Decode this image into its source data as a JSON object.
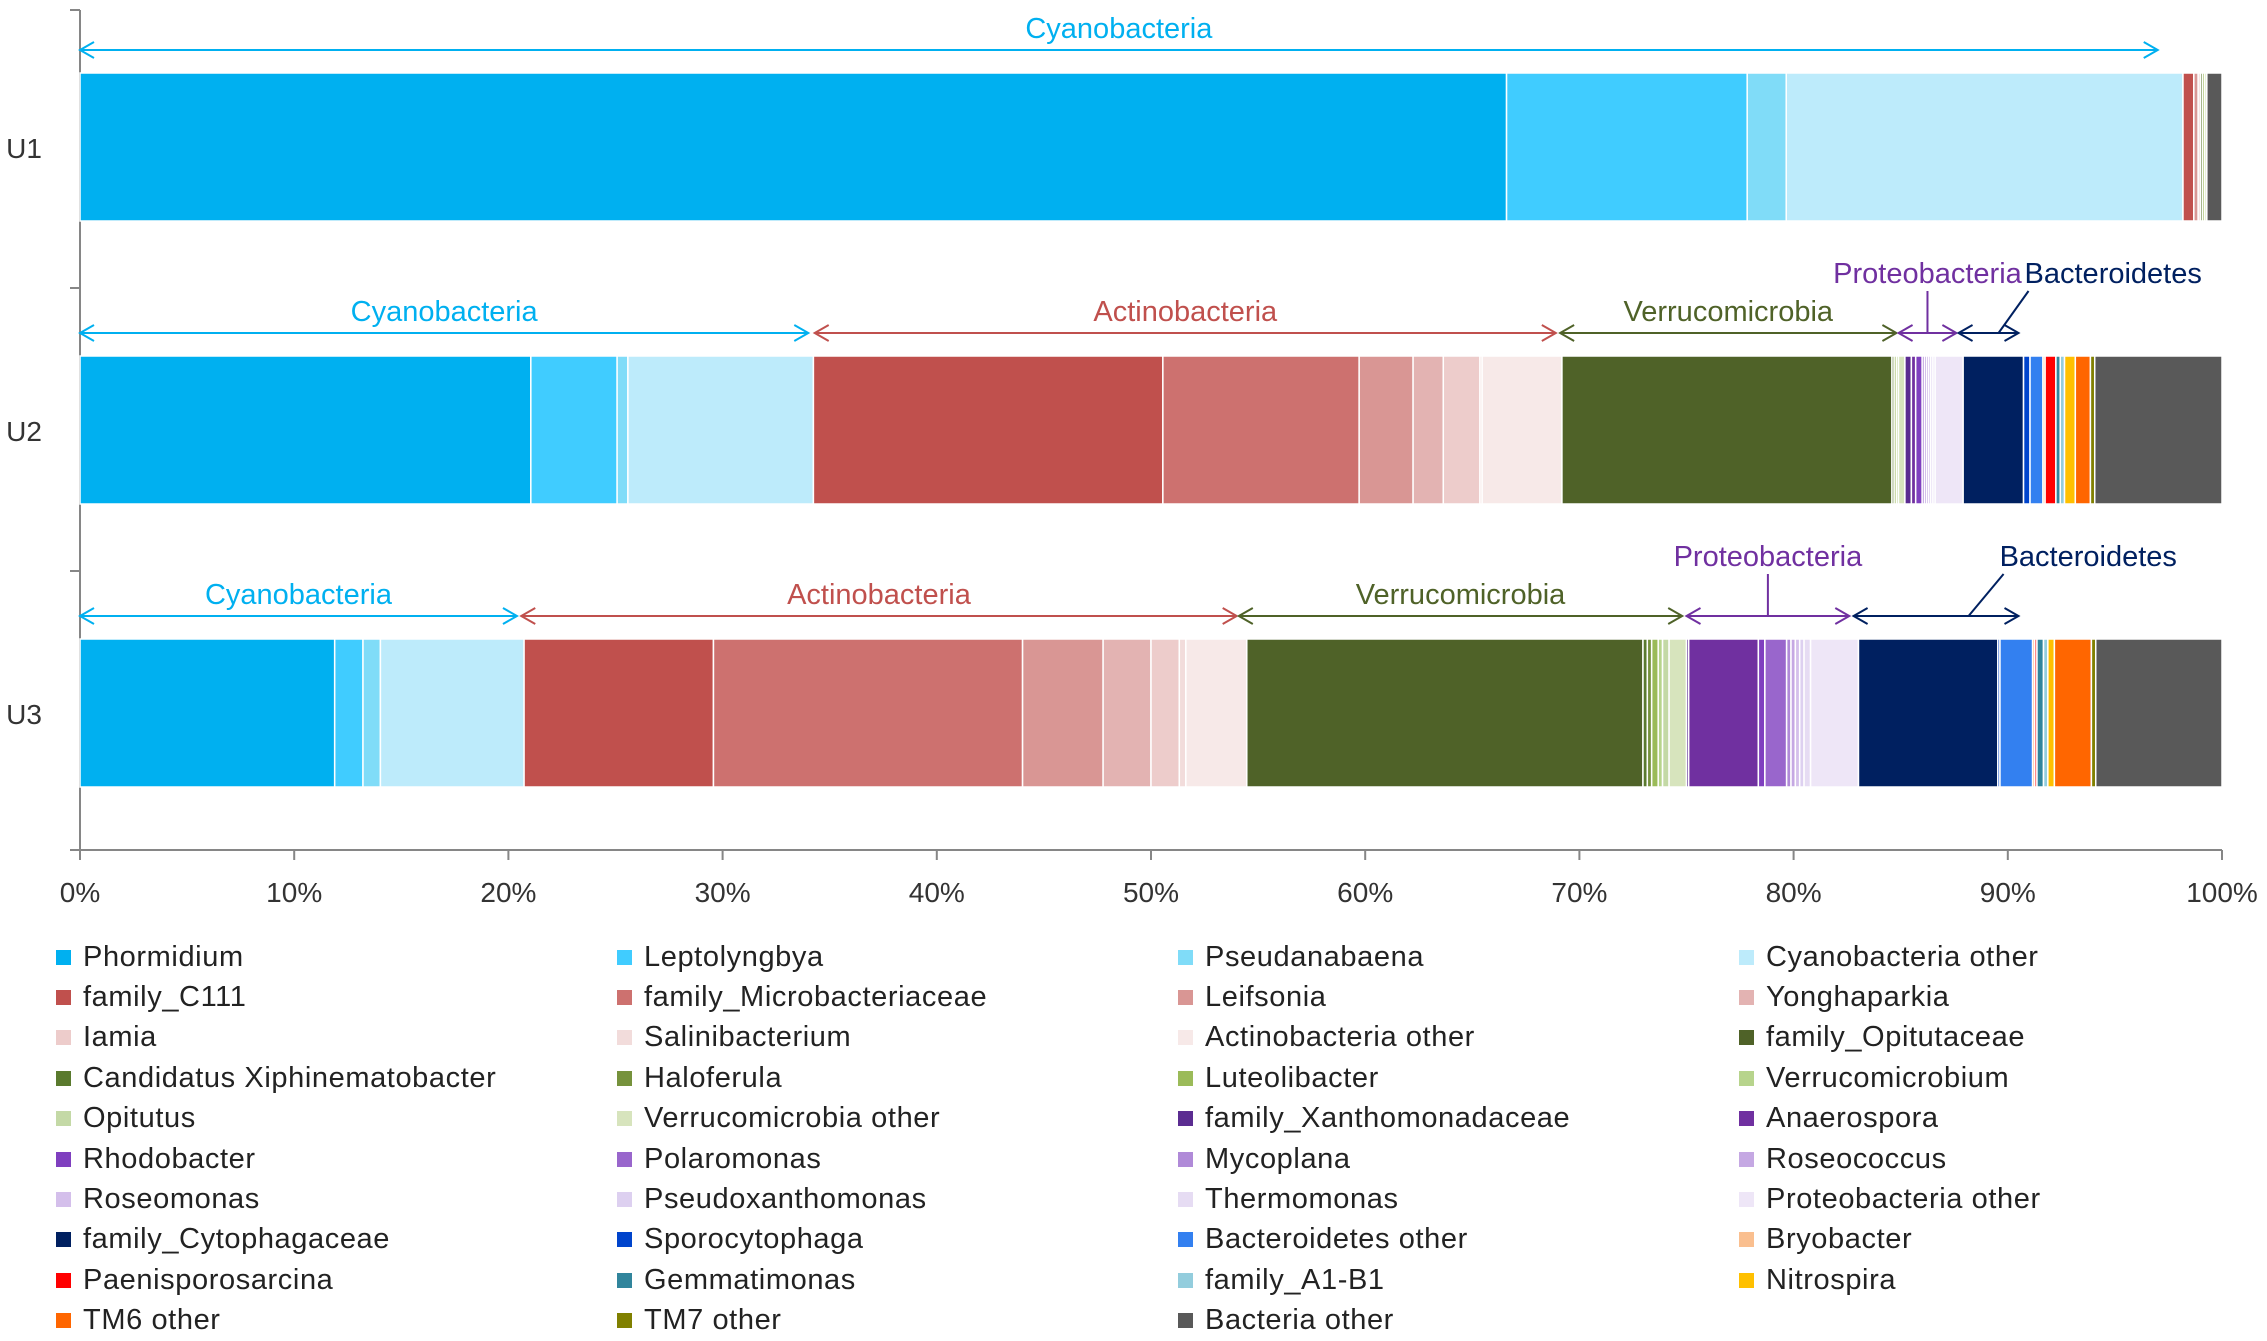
{
  "chart_data": {
    "type": "bar",
    "orientation": "horizontal",
    "stacked": "percent",
    "title": "",
    "xlabel": "",
    "ylabel": "",
    "xlim": [
      0,
      100
    ],
    "x_tick_labels": [
      "0%",
      "10%",
      "20%",
      "30%",
      "40%",
      "50%",
      "60%",
      "70%",
      "80%",
      "90%",
      "100%"
    ],
    "categories": [
      "U1",
      "U2",
      "U3"
    ],
    "legend_position": "bottom",
    "series": [
      {
        "name": "Phormidium",
        "color": "#00B0F0",
        "values": [
          65.8,
          20.9,
          11.7
        ]
      },
      {
        "name": "Leptolyngbya",
        "color": "#40CCFF",
        "values": [
          11.1,
          4.0,
          1.3
        ]
      },
      {
        "name": "Pseudanabaena",
        "color": "#80DCF8",
        "values": [
          1.8,
          0.5,
          0.8
        ]
      },
      {
        "name": "Cyanobacteria other",
        "color": "#BDEBFB",
        "values": [
          18.3,
          8.6,
          6.6
        ]
      },
      {
        "name": "family_C111",
        "color": "#C0504D",
        "values": [
          0.5,
          16.2,
          8.7
        ]
      },
      {
        "name": "family_Microbacteriaceae",
        "color": "#CD716F",
        "values": [
          0,
          9.1,
          14.2
        ]
      },
      {
        "name": "Leifsonia",
        "color": "#D99694",
        "values": [
          0.2,
          2.5,
          3.7
        ]
      },
      {
        "name": "Yonghaparkia",
        "color": "#E3B3B2",
        "values": [
          0,
          1.4,
          2.2
        ]
      },
      {
        "name": "Iamia",
        "color": "#EDCCCB",
        "values": [
          0.1,
          1.7,
          1.3
        ]
      },
      {
        "name": "Salinibacterium",
        "color": "#F2DCDB",
        "values": [
          0,
          0.1,
          0.3
        ]
      },
      {
        "name": "Actinobacteria other",
        "color": "#F7E9E8",
        "values": [
          0,
          3.7,
          2.8
        ]
      },
      {
        "name": "family_Opitutaceae",
        "color": "#4F6228",
        "values": [
          0,
          15.3,
          18.2
        ]
      },
      {
        "name": "Candidatus Xiphinematobacter",
        "color": "#5A7A2E",
        "values": [
          0.1,
          0.1,
          0.2
        ]
      },
      {
        "name": "Haloferula",
        "color": "#76923C",
        "values": [
          0,
          0,
          0.2
        ]
      },
      {
        "name": "Luteolibacter",
        "color": "#9BBB59",
        "values": [
          0.1,
          0.1,
          0.3
        ]
      },
      {
        "name": "Verrucomicrobium",
        "color": "#B7D48C",
        "values": [
          0,
          0,
          0.2
        ]
      },
      {
        "name": "Opitutus",
        "color": "#C4D9A6",
        "values": [
          0,
          0.1,
          0.3
        ]
      },
      {
        "name": "Verrucomicrobia other",
        "color": "#D7E4BD",
        "values": [
          0.1,
          0.3,
          0.8
        ]
      },
      {
        "name": "family_Xanthomonadaceae",
        "color": "#5B2C91",
        "values": [
          0,
          0.3,
          0.1
        ]
      },
      {
        "name": "Anaerospora",
        "color": "#7030A0",
        "values": [
          0,
          0.2,
          3.2
        ]
      },
      {
        "name": "Rhodobacter",
        "color": "#7F3FBF",
        "values": [
          0,
          0.3,
          0.3
        ]
      },
      {
        "name": "Polaromonas",
        "color": "#9966CC",
        "values": [
          0,
          0.1,
          1.0
        ]
      },
      {
        "name": "Mycoplana",
        "color": "#B08AD8",
        "values": [
          0,
          0.1,
          0.2
        ]
      },
      {
        "name": "Roseococcus",
        "color": "#C5A8E3",
        "values": [
          0,
          0.1,
          0.2
        ]
      },
      {
        "name": "Roseomonas",
        "color": "#D4BFEB",
        "values": [
          0,
          0.1,
          0.2
        ]
      },
      {
        "name": "Pseudoxanthomonas",
        "color": "#DDD0F0",
        "values": [
          0,
          0.1,
          0.2
        ]
      },
      {
        "name": "Thermomonas",
        "color": "#E6DCF3",
        "values": [
          0,
          0.1,
          0.3
        ]
      },
      {
        "name": "Proteobacteria other",
        "color": "#EEE6F7",
        "values": [
          0,
          1.3,
          2.2
        ]
      },
      {
        "name": "family_Cytophagaceae",
        "color": "#002060",
        "values": [
          0,
          2.8,
          6.4
        ]
      },
      {
        "name": "Sporocytophaga",
        "color": "#0044CC",
        "values": [
          0,
          0.3,
          0.1
        ]
      },
      {
        "name": "Bacteroidetes other",
        "color": "#3380F0",
        "values": [
          0,
          0.6,
          1.5
        ]
      },
      {
        "name": "Bryobacter",
        "color": "#FABF8F",
        "values": [
          0,
          0.1,
          0.1
        ]
      },
      {
        "name": "Paenisporosarcina",
        "color": "#FF0000",
        "values": [
          0,
          0.5,
          0.1
        ]
      },
      {
        "name": "Gemmatimonas",
        "color": "#31859C",
        "values": [
          0,
          0.2,
          0.3
        ]
      },
      {
        "name": "family_A1-B1",
        "color": "#93CDDD",
        "values": [
          0,
          0.2,
          0.2
        ]
      },
      {
        "name": "Nitrospira",
        "color": "#FFC000",
        "values": [
          0,
          0.5,
          0.3
        ]
      },
      {
        "name": "TM6 other",
        "color": "#FF6600",
        "values": [
          0,
          0.7,
          1.7
        ]
      },
      {
        "name": "TM7 other",
        "color": "#808000",
        "values": [
          0,
          0.2,
          0.2
        ]
      },
      {
        "name": "Bacteria other",
        "color": "#595959",
        "values": [
          0.7,
          5.9,
          5.8
        ]
      }
    ],
    "annotations": [
      {
        "row": "U1",
        "label": "Cyanobacteria",
        "color": "#00B0F0",
        "from": 0,
        "to": 97
      },
      {
        "row": "U2",
        "label": "Cyanobacteria",
        "color": "#00B0F0",
        "from": 0,
        "to": 34
      },
      {
        "row": "U2",
        "label": "Actinobacteria",
        "color": "#C0504D",
        "from": 34.3,
        "to": 68.9
      },
      {
        "row": "U2",
        "label": "Verrucomicrobia",
        "color": "#4F6228",
        "from": 69.1,
        "to": 84.8
      },
      {
        "row": "U2",
        "label": "Proteobacteria",
        "color": "#7030A0",
        "from": 84.9,
        "to": 87.6
      },
      {
        "row": "U2",
        "label": "Bacteroidetes",
        "color": "#002060",
        "from": 87.7,
        "to": 90.5
      },
      {
        "row": "U3",
        "label": "Cyanobacteria",
        "color": "#00B0F0",
        "from": 0,
        "to": 20.4
      },
      {
        "row": "U3",
        "label": "Actinobacteria",
        "color": "#C0504D",
        "from": 20.6,
        "to": 54
      },
      {
        "row": "U3",
        "label": "Verrucomicrobia",
        "color": "#4F6228",
        "from": 54.1,
        "to": 74.8
      },
      {
        "row": "U3",
        "label": "Proteobacteria",
        "color": "#7030A0",
        "from": 75,
        "to": 82.6
      },
      {
        "row": "U3",
        "label": "Bacteroidetes",
        "color": "#002060",
        "from": 82.8,
        "to": 90.5
      }
    ]
  }
}
